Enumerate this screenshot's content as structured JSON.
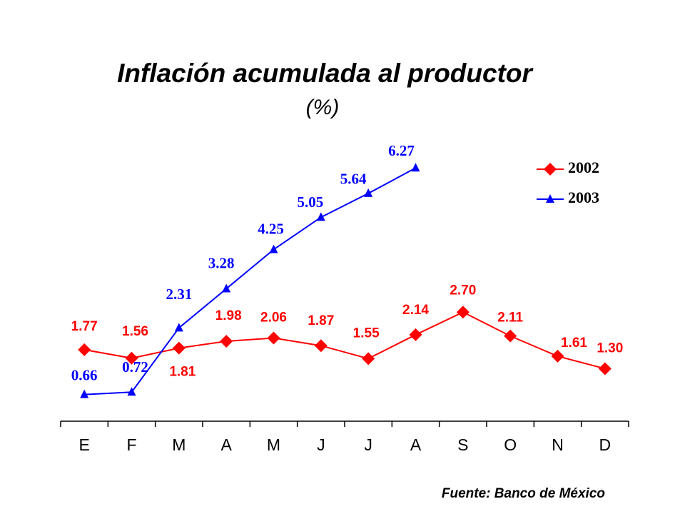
{
  "chart_data": {
    "type": "line",
    "title": "Inflación acumulada al productor",
    "subtitle": "(%)",
    "categories": [
      "E",
      "F",
      "M",
      "A",
      "M",
      "J",
      "J",
      "A",
      "S",
      "O",
      "N",
      "D"
    ],
    "series": [
      {
        "name": "2002",
        "color": "#ff0000",
        "marker": "diamond",
        "values": [
          1.77,
          1.56,
          1.81,
          1.98,
          2.06,
          1.87,
          1.55,
          2.14,
          2.7,
          2.11,
          1.61,
          1.3
        ],
        "value_labels": [
          "1.77",
          "1.56",
          "1.81",
          "1.98",
          "2.06",
          "1.87",
          "1.55",
          "2.14",
          "2.70",
          "2.11",
          "1.61",
          "1.30"
        ]
      },
      {
        "name": "2003",
        "color": "#0000ff",
        "marker": "triangle",
        "values": [
          0.66,
          0.72,
          2.31,
          3.28,
          4.25,
          5.05,
          5.64,
          6.27,
          null,
          null,
          null,
          null
        ],
        "value_labels": [
          "0.66",
          "0.72",
          "2.31",
          "3.28",
          "4.25",
          "5.05",
          "5.64",
          "6.27",
          null,
          null,
          null,
          null
        ]
      }
    ],
    "ylim": [
      0,
      7
    ],
    "legend": "top-right",
    "source": "Fuente: Banco de México"
  }
}
